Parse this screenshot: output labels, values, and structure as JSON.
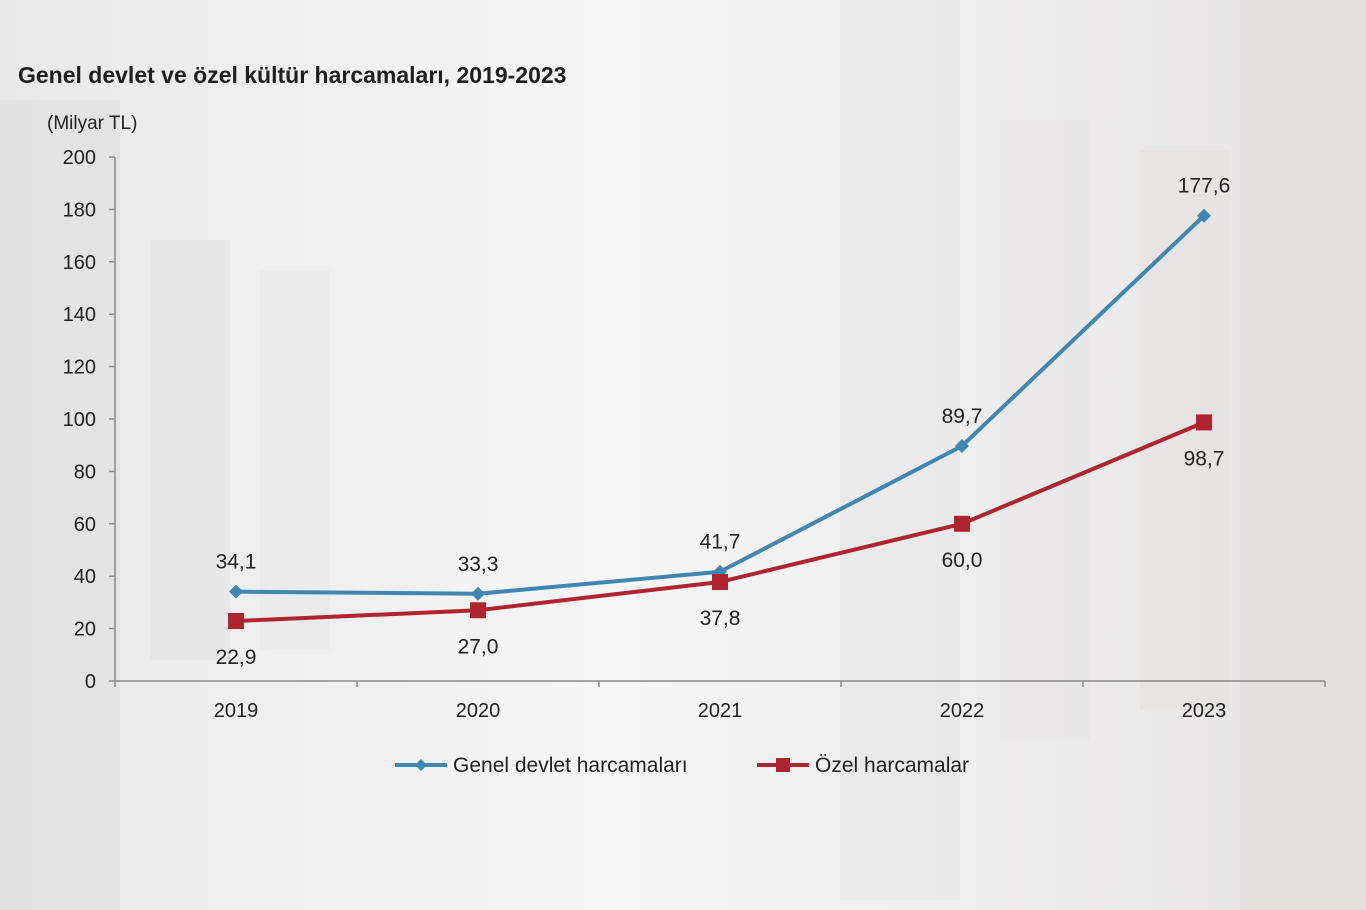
{
  "chart_data": {
    "type": "line",
    "title": "Genel devlet ve özel kültür harcamaları, 2019-2023",
    "unit_label": "(Milyar TL)",
    "categories": [
      "2019",
      "2020",
      "2021",
      "2022",
      "2023"
    ],
    "ylim": [
      0,
      200
    ],
    "yticks": [
      0,
      20,
      40,
      60,
      80,
      100,
      120,
      140,
      160,
      180,
      200
    ],
    "grid": false,
    "legend_position": "bottom",
    "series": [
      {
        "name": "Genel devlet harcamaları",
        "color": "#3f86b3",
        "marker": "diamond",
        "values": [
          34.1,
          33.3,
          41.7,
          89.7,
          177.6
        ],
        "labels": [
          "34,1",
          "33,3",
          "41,7",
          "89,7",
          "177,6"
        ],
        "label_position": "above"
      },
      {
        "name": "Özel harcamalar",
        "color": "#b02330",
        "marker": "square",
        "values": [
          22.9,
          27.0,
          37.8,
          60.0,
          98.7
        ],
        "labels": [
          "22,9",
          "27,0",
          "37,8",
          "60,0",
          "98,7"
        ],
        "label_position": "below"
      }
    ]
  }
}
